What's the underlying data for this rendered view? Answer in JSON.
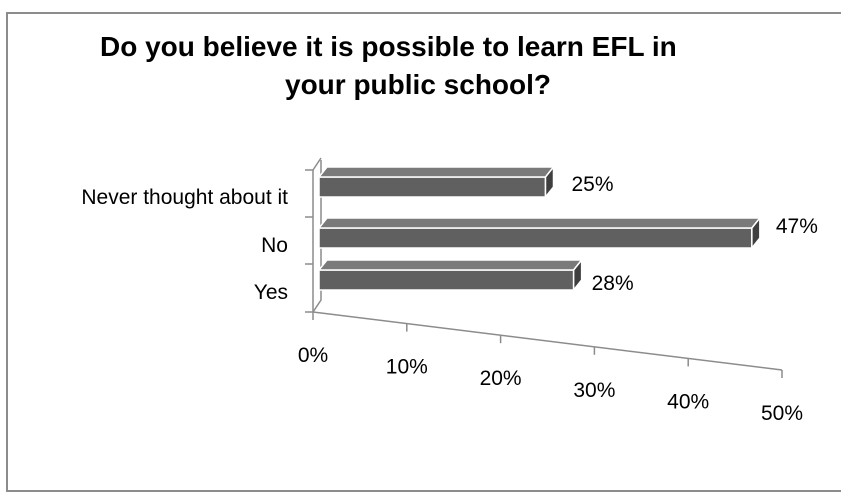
{
  "chart_data": {
    "type": "bar",
    "orientation": "horizontal",
    "three_d": true,
    "title_lines": [
      "Do you believe it is possible to learn EFL in",
      "your public school?"
    ],
    "categories": [
      "Never thought about it",
      "No",
      "Yes"
    ],
    "values": [
      25,
      47,
      28
    ],
    "data_labels": [
      "25%",
      "47%",
      "28%"
    ],
    "x_ticks": [
      "0%",
      "10%",
      "20%",
      "30%",
      "40%",
      "50%"
    ],
    "xlim": [
      0,
      50
    ],
    "xlabel": "",
    "ylabel": "",
    "grid": false,
    "legend": "none",
    "bar_color": "#606060",
    "bar_edge_color": "#ffffff"
  }
}
